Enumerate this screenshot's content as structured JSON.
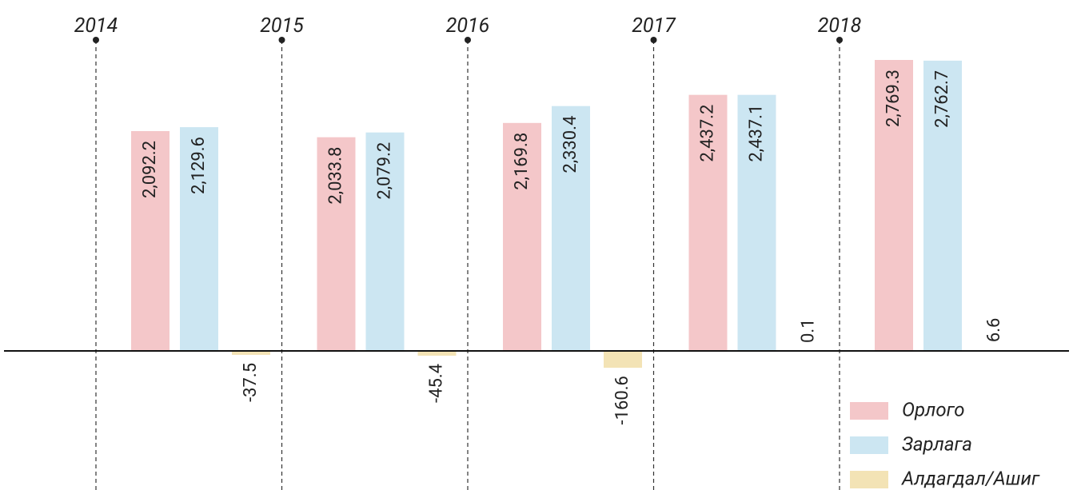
{
  "chart_data": {
    "type": "bar",
    "categories": [
      "2014",
      "2015",
      "2016",
      "2017",
      "2018"
    ],
    "series": [
      {
        "name": "Орлого",
        "color": "#f4c7c9",
        "values": [
          2092.2,
          2033.8,
          2169.8,
          2437.2,
          2769.3
        ],
        "value_labels": [
          "2,092.2",
          "2,033.8",
          "2,169.8",
          "2,437.2",
          "2,769.3"
        ]
      },
      {
        "name": "Зарлага",
        "color": "#cce6f2",
        "values": [
          2129.6,
          2079.2,
          2330.4,
          2437.1,
          2762.7
        ],
        "value_labels": [
          "2,129.6",
          "2,079.2",
          "2,330.4",
          "2,437.1",
          "2,762.7"
        ]
      },
      {
        "name": "Алдагдал/Ашиг",
        "color": "#f3e3b5",
        "values": [
          -37.5,
          -45.4,
          -160.6,
          0.1,
          6.6
        ],
        "value_labels": [
          "-37.5",
          "-45.4",
          "-160.6",
          "0.1",
          "6.6"
        ]
      }
    ],
    "legend": "bottom-right"
  }
}
